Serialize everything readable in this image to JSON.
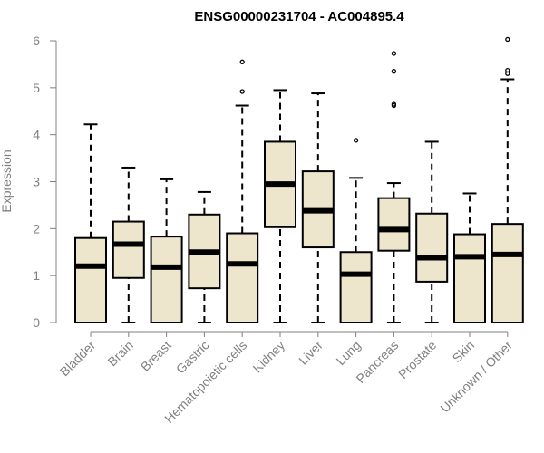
{
  "chart_data": {
    "type": "box",
    "title": "ENSG00000231704 - AC004895.4",
    "ylabel": "Expression",
    "xlabel": "",
    "ylim": [
      0,
      6
    ],
    "yticks": [
      0,
      1,
      2,
      3,
      4,
      5,
      6
    ],
    "grid": false,
    "legend": "none",
    "box_color": "#ede6cd",
    "categories": [
      "Bladder",
      "Brain",
      "Breast",
      "Gastric",
      "Hematopoietic cells",
      "Kidney",
      "Liver",
      "Lung",
      "Pancreas",
      "Prostate",
      "Skin",
      "Unknown / Other"
    ],
    "boxes": [
      {
        "whisker_low": 0,
        "q1": 0,
        "median": 1.2,
        "q3": 1.8,
        "whisker_high": 4.22,
        "outliers": []
      },
      {
        "whisker_low": 0,
        "q1": 0.95,
        "median": 1.67,
        "q3": 2.15,
        "whisker_high": 3.3,
        "outliers": []
      },
      {
        "whisker_low": 0,
        "q1": 0,
        "median": 1.18,
        "q3": 1.83,
        "whisker_high": 3.05,
        "outliers": []
      },
      {
        "whisker_low": 0,
        "q1": 0.73,
        "median": 1.5,
        "q3": 2.3,
        "whisker_high": 2.78,
        "outliers": []
      },
      {
        "whisker_low": 0,
        "q1": 0,
        "median": 1.25,
        "q3": 1.9,
        "whisker_high": 4.62,
        "outliers": [
          4.92,
          5.55
        ]
      },
      {
        "whisker_low": 0,
        "q1": 2.03,
        "median": 2.95,
        "q3": 3.85,
        "whisker_high": 4.95,
        "outliers": []
      },
      {
        "whisker_low": 0,
        "q1": 1.6,
        "median": 2.38,
        "q3": 3.22,
        "whisker_high": 4.88,
        "outliers": []
      },
      {
        "whisker_low": 0,
        "q1": 0,
        "median": 1.03,
        "q3": 1.5,
        "whisker_high": 3.08,
        "outliers": [
          3.88
        ]
      },
      {
        "whisker_low": 0,
        "q1": 1.53,
        "median": 1.98,
        "q3": 2.65,
        "whisker_high": 2.97,
        "outliers": [
          4.62,
          4.65,
          5.35,
          5.73
        ]
      },
      {
        "whisker_low": 0,
        "q1": 0.87,
        "median": 1.38,
        "q3": 2.32,
        "whisker_high": 3.85,
        "outliers": []
      },
      {
        "whisker_low": 0,
        "q1": 0,
        "median": 1.4,
        "q3": 1.88,
        "whisker_high": 2.75,
        "outliers": []
      },
      {
        "whisker_low": 0,
        "q1": 0,
        "median": 1.45,
        "q3": 2.1,
        "whisker_high": 5.18,
        "outliers": [
          5.3,
          5.37,
          6.03
        ]
      }
    ]
  }
}
